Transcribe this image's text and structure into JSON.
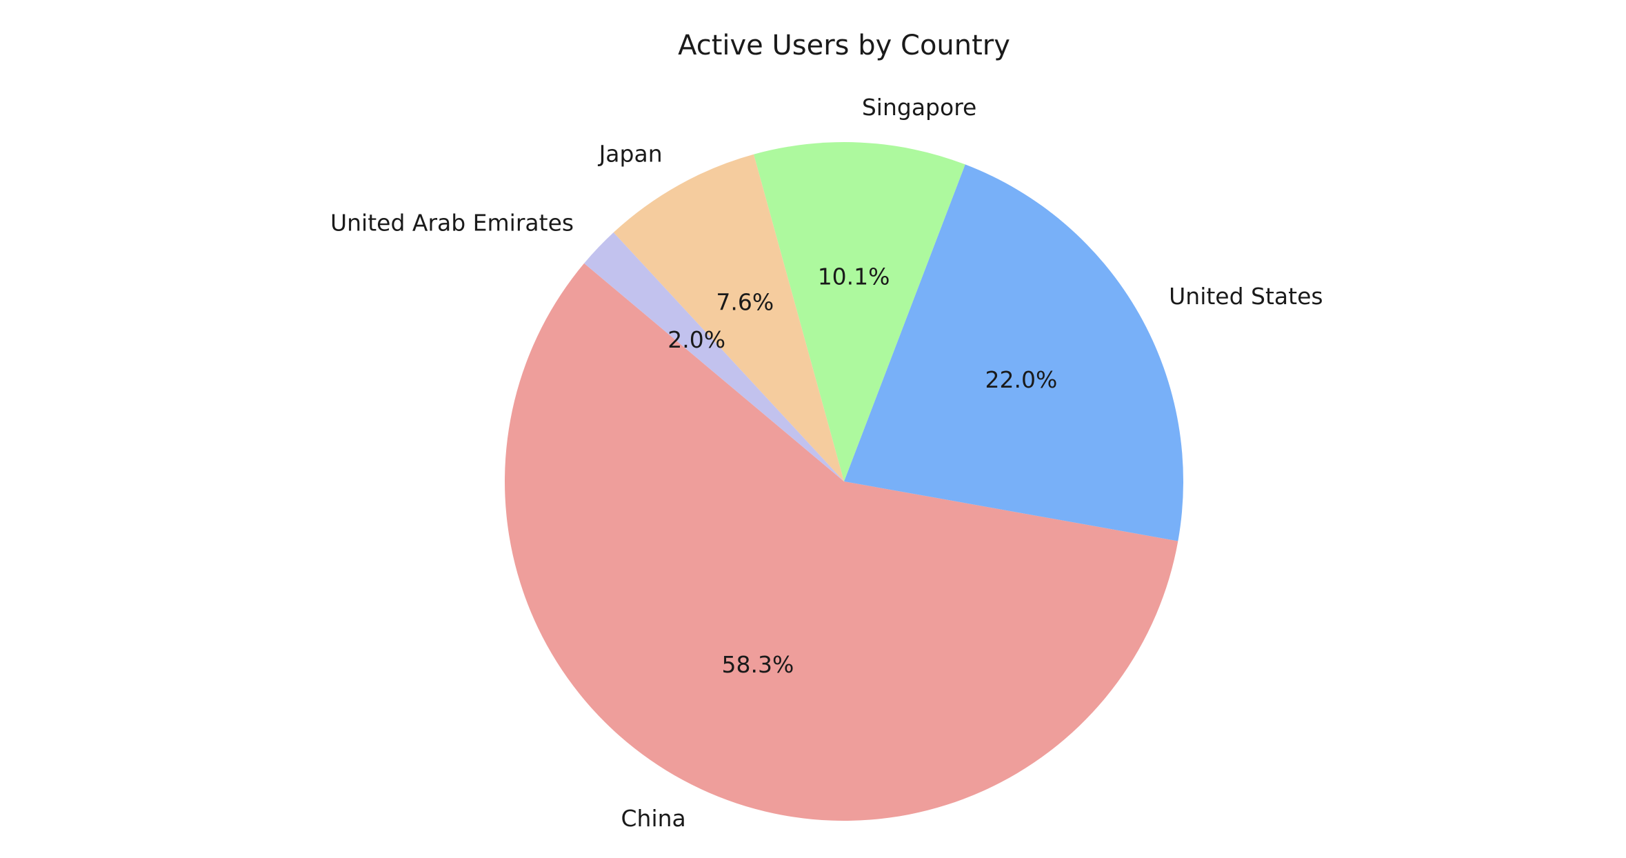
{
  "chart_data": {
    "type": "pie",
    "title": "Active Users by Country",
    "categories": [
      "China",
      "United States",
      "Singapore",
      "Japan",
      "United Arab Emirates"
    ],
    "values": [
      58.3,
      22.0,
      10.1,
      7.6,
      2.0
    ],
    "value_labels": [
      "58.3%",
      "22.0%",
      "10.1%",
      "7.6%",
      "2.0%"
    ],
    "colors": [
      "#ee9e9b",
      "#78b0f8",
      "#adf99e",
      "#f5cc9e",
      "#c2c2ee"
    ]
  }
}
